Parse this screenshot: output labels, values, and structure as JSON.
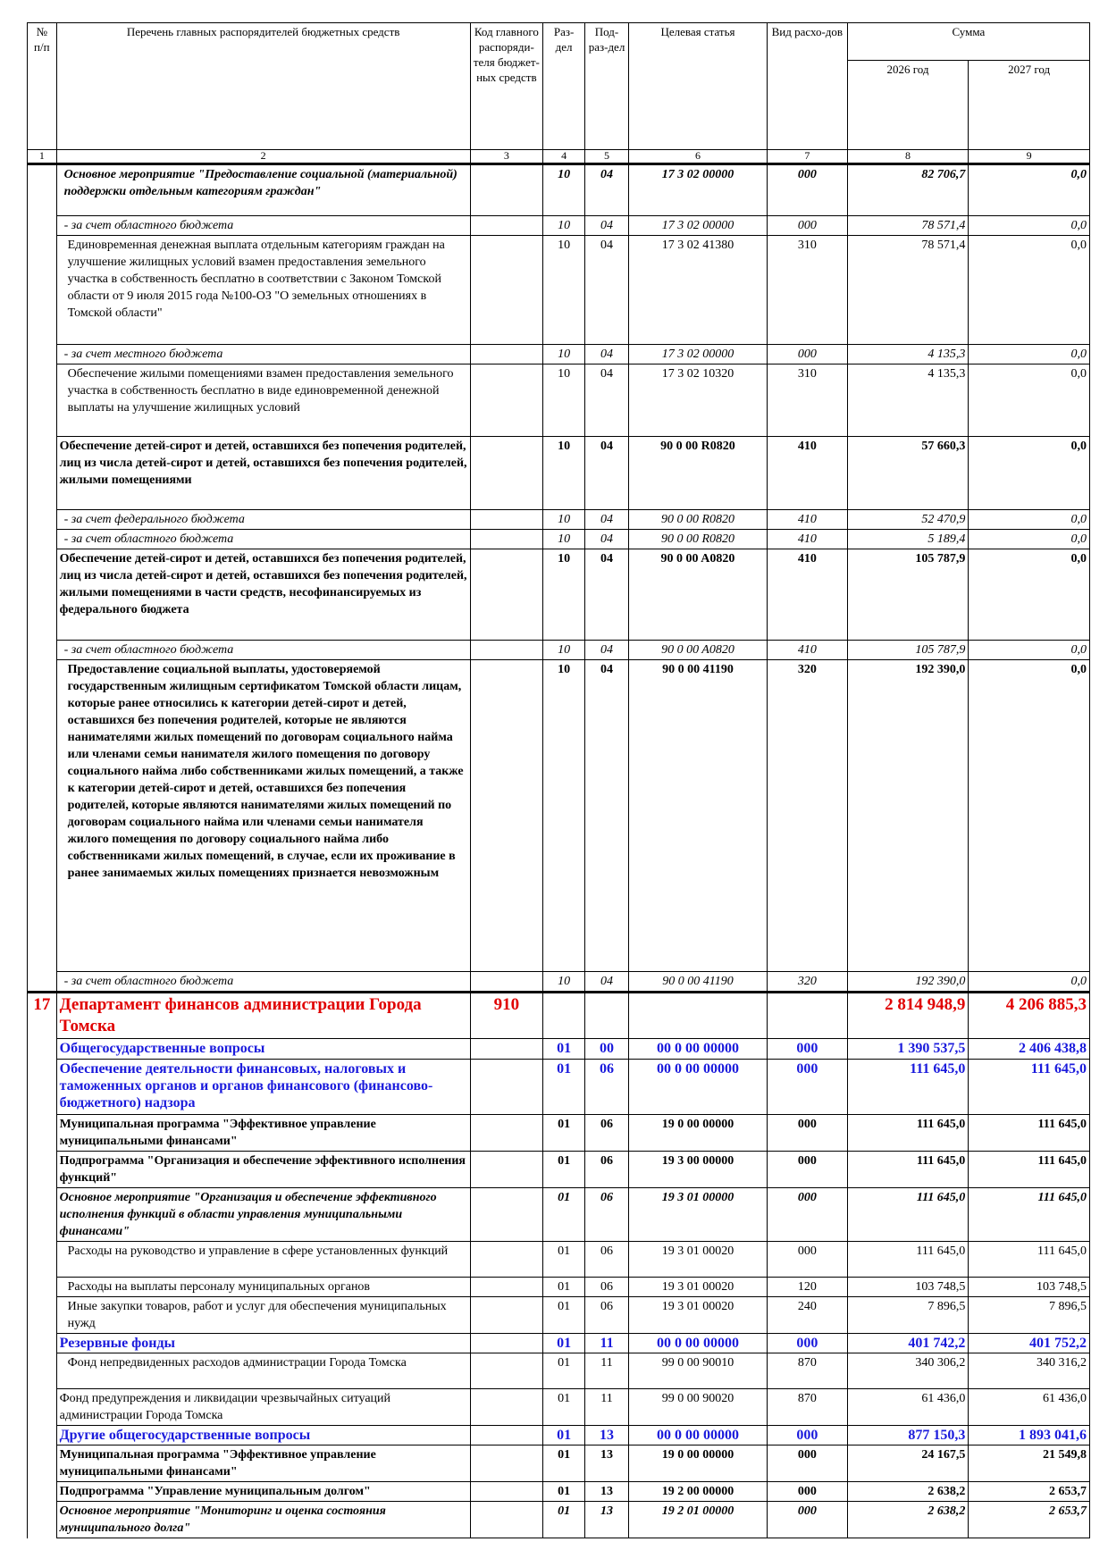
{
  "header": {
    "num": "№\nп/п",
    "name": "Перечень главных распорядителей бюджетных средств",
    "code": "Код главного распоряди-теля бюджет-ных средств",
    "razdel": "Раз-дел",
    "podrazdel": "Под-раз-дел",
    "target": "Целевая статья",
    "vid": "Вид расхо-дов",
    "sum": "Сумма",
    "y1": "2026 год",
    "y2": "2027 год",
    "col_numbers": [
      "1",
      "2",
      "3",
      "4",
      "5",
      "6",
      "7",
      "8",
      "9"
    ]
  },
  "rows": [
    {
      "name": "Основное мероприятие \"Предоставление социальной (материальной) поддержки отдельным категориям граждан\"",
      "code": "",
      "r": "10",
      "p": "04",
      "cs": "17 3 02 00000",
      "vr": "000",
      "s1": "82 706,7",
      "s2": "0,0"
    },
    {
      "name": "- за счет областного бюджета",
      "code": "",
      "r": "10",
      "p": "04",
      "cs": "17 3 02 00000",
      "vr": "000",
      "s1": "78 571,4",
      "s2": "0,0"
    },
    {
      "name": "Единовременная денежная выплата отдельным категориям граждан на улучшение жилищных условий взамен предоставления земельного участка в собственность бесплатно в соответствии с Законом Томской области от 9 июля 2015 года №100-ОЗ \"О земельных отношениях в Томской области\"",
      "code": "",
      "r": "10",
      "p": "04",
      "cs": "17 3 02 41380",
      "vr": "310",
      "s1": "78 571,4",
      "s2": "0,0"
    },
    {
      "name": "- за счет местного бюджета",
      "code": "",
      "r": "10",
      "p": "04",
      "cs": "17 3 02 00000",
      "vr": "000",
      "s1": "4 135,3",
      "s2": "0,0"
    },
    {
      "name": "Обеспечение жилыми помещениями взамен предоставления земельного участка в собственность бесплатно в виде единовременной денежной выплаты на улучшение жилищных условий",
      "code": "",
      "r": "10",
      "p": "04",
      "cs": "17 3 02 10320",
      "vr": "310",
      "s1": "4 135,3",
      "s2": "0,0"
    },
    {
      "name": "Обеспечение детей-сирот и детей, оставшихся без попечения родителей, лиц из числа детей-сирот и детей, оставшихся без попечения родителей, жилыми помещениями",
      "code": "",
      "r": "10",
      "p": "04",
      "cs": "90 0 00 R0820",
      "vr": "410",
      "s1": "57 660,3",
      "s2": "0,0"
    },
    {
      "name": "- за счет федерального бюджета",
      "code": "",
      "r": "10",
      "p": "04",
      "cs": "90 0 00 R0820",
      "vr": "410",
      "s1": "52 470,9",
      "s2": "0,0"
    },
    {
      "name": "- за счет областного бюджета",
      "code": "",
      "r": "10",
      "p": "04",
      "cs": "90 0 00 R0820",
      "vr": "410",
      "s1": "5 189,4",
      "s2": "0,0"
    },
    {
      "name": "Обеспечение детей-сирот и детей, оставшихся без попечения родителей, лиц из числа детей-сирот и детей, оставшихся без попечения родителей, жилыми помещениями в части средств, несофинансируемых из федерального бюджета",
      "code": "",
      "r": "10",
      "p": "04",
      "cs": "90 0 00 A0820",
      "vr": "410",
      "s1": "105 787,9",
      "s2": "0,0"
    },
    {
      "name": "- за счет областного бюджета",
      "code": "",
      "r": "10",
      "p": "04",
      "cs": "90 0 00 A0820",
      "vr": "410",
      "s1": "105 787,9",
      "s2": "0,0"
    },
    {
      "name": "Предоставление социальной выплаты, удостоверяемой государственным жилищным сертификатом Томской области лицам, которые ранее относились к категории детей-сирот и детей, оставшихся без попечения родителей, которые не являются нанимателями жилых помещений по договорам социального найма или членами семьи нанимателя жилого помещения по договору социального найма либо собственниками жилых помещений, а также к категории детей-сирот и детей, оставшихся без попечения родителей, которые являются нанимателями жилых помещений по договорам социального найма или членами семьи нанимателя жилого помещения по договору социального найма либо собственниками жилых помещений, в случае, если их проживание в ранее занимаемых жилых помещениях признается невозможным",
      "code": "",
      "r": "10",
      "p": "04",
      "cs": "90 0 00 41190",
      "vr": "320",
      "s1": "192 390,0",
      "s2": "0,0"
    },
    {
      "name": "- за счет областного бюджета",
      "code": "",
      "r": "10",
      "p": "04",
      "cs": "90 0 00 41190",
      "vr": "320",
      "s1": "192 390,0",
      "s2": "0,0"
    },
    {
      "num": "17",
      "name": "Департамент финансов администрации Города Томска",
      "code": "910",
      "r": "",
      "p": "",
      "cs": "",
      "vr": "",
      "s1": "2 814 948,9",
      "s2": "4 206 885,3"
    },
    {
      "name": "Общегосударственные вопросы",
      "code": "",
      "r": "01",
      "p": "00",
      "cs": "00 0 00 00000",
      "vr": "000",
      "s1": "1 390 537,5",
      "s2": "2 406 438,8"
    },
    {
      "name": "Обеспечение деятельности финансовых, налоговых и таможенных органов и органов финансового (финансово-бюджетного) надзора",
      "code": "",
      "r": "01",
      "p": "06",
      "cs": "00 0 00 00000",
      "vr": "000",
      "s1": "111 645,0",
      "s2": "111 645,0"
    },
    {
      "name": "Муниципальная программа \"Эффективное управление муниципальными финансами\"",
      "code": "",
      "r": "01",
      "p": "06",
      "cs": "19 0 00 00000",
      "vr": "000",
      "s1": "111 645,0",
      "s2": "111 645,0"
    },
    {
      "name": "Подпрограмма \"Организация и обеспечение эффективного исполнения функций\"",
      "code": "",
      "r": "01",
      "p": "06",
      "cs": "19 3 00 00000",
      "vr": "000",
      "s1": "111 645,0",
      "s2": "111 645,0"
    },
    {
      "name": "Основное мероприятие \"Организация и обеспечение эффективного исполнения функций в области управления муниципальными финансами\"",
      "code": "",
      "r": "01",
      "p": "06",
      "cs": "19 3 01 00000",
      "vr": "000",
      "s1": "111 645,0",
      "s2": "111 645,0"
    },
    {
      "name": "Расходы на руководство и управление в сфере установленных функций",
      "code": "",
      "r": "01",
      "p": "06",
      "cs": "19 3 01 00020",
      "vr": "000",
      "s1": "111 645,0",
      "s2": "111 645,0"
    },
    {
      "name": "Расходы на выплаты персоналу муниципальных органов",
      "code": "",
      "r": "01",
      "p": "06",
      "cs": "19 3 01 00020",
      "vr": "120",
      "s1": "103 748,5",
      "s2": "103 748,5"
    },
    {
      "name": "Иные закупки товаров, работ и услуг для обеспечения муниципальных нужд",
      "code": "",
      "r": "01",
      "p": "06",
      "cs": "19 3 01 00020",
      "vr": "240",
      "s1": "7 896,5",
      "s2": "7 896,5"
    },
    {
      "name": "Резервные фонды",
      "code": "",
      "r": "01",
      "p": "11",
      "cs": "00 0 00 00000",
      "vr": "000",
      "s1": "401 742,2",
      "s2": "401 752,2"
    },
    {
      "name": "Фонд непредвиденных расходов администрации Города Томска",
      "code": "",
      "r": "01",
      "p": "11",
      "cs": "99 0 00 90010",
      "vr": "870",
      "s1": "340 306,2",
      "s2": "340 316,2"
    },
    {
      "name": "Фонд предупреждения и ликвидации чрезвычайных ситуаций администрации Города Томска",
      "code": "",
      "r": "01",
      "p": "11",
      "cs": "99 0 00 90020",
      "vr": "870",
      "s1": "61 436,0",
      "s2": "61 436,0"
    },
    {
      "name": "Другие общегосударственные вопросы",
      "code": "",
      "r": "01",
      "p": "13",
      "cs": "00 0 00 00000",
      "vr": "000",
      "s1": "877 150,3",
      "s2": "1 893 041,6"
    },
    {
      "name": "Муниципальная программа \"Эффективное управление муниципальными финансами\"",
      "code": "",
      "r": "01",
      "p": "13",
      "cs": "19 0 00 00000",
      "vr": "000",
      "s1": "24 167,5",
      "s2": "21 549,8"
    },
    {
      "name": "Подпрограмма \"Управление муниципальным долгом\"",
      "code": "",
      "r": "01",
      "p": "13",
      "cs": "19 2 00 00000",
      "vr": "000",
      "s1": "2 638,2",
      "s2": "2 653,7"
    },
    {
      "name": "Основное мероприятие \"Мониторинг и оценка состояния муниципального долга\"",
      "code": "",
      "r": "01",
      "p": "13",
      "cs": "19 2 01 00000",
      "vr": "000",
      "s1": "2 638,2",
      "s2": "2 653,7"
    }
  ]
}
